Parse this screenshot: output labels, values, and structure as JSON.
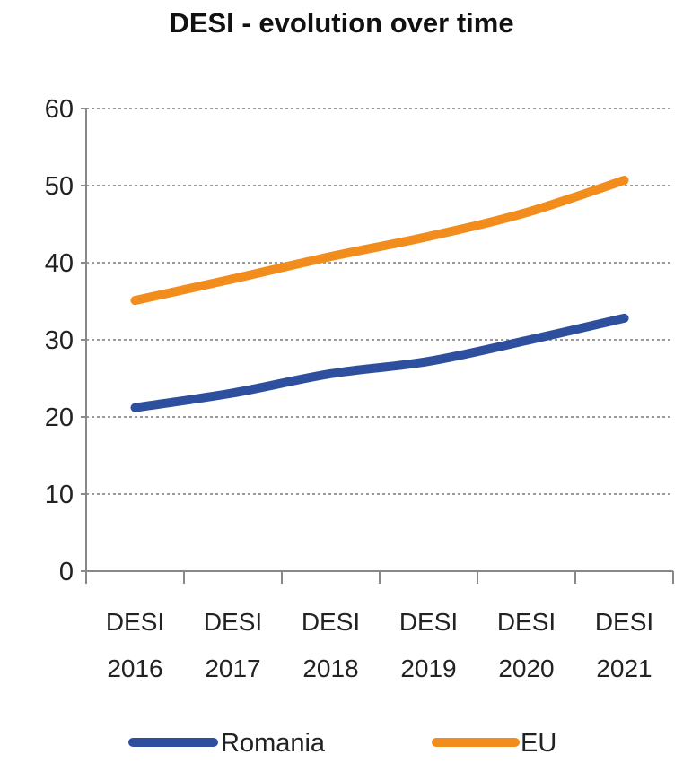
{
  "chart_data": {
    "type": "line",
    "title": "DESI - evolution over time",
    "xlabel": "",
    "ylabel": "",
    "categories": [
      [
        "DESI",
        "2016"
      ],
      [
        "DESI",
        "2017"
      ],
      [
        "DESI",
        "2018"
      ],
      [
        "DESI",
        "2019"
      ],
      [
        "DESI",
        "2020"
      ],
      [
        "DESI",
        "2021"
      ]
    ],
    "ylim": [
      0,
      60
    ],
    "yticks": [
      0,
      10,
      20,
      30,
      40,
      50,
      60
    ],
    "grid": true,
    "legend_position": "bottom",
    "series": [
      {
        "name": "Romania",
        "color": "#2e4f9e",
        "values": [
          21.2,
          23.1,
          25.6,
          27.2,
          29.9,
          32.8
        ]
      },
      {
        "name": "EU",
        "color": "#f28c1c",
        "values": [
          35.1,
          37.9,
          40.8,
          43.4,
          46.5,
          50.7
        ]
      }
    ]
  }
}
